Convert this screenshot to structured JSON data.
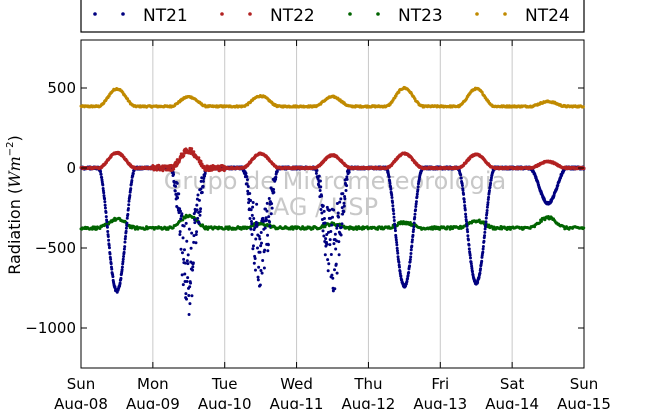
{
  "chart_data": {
    "type": "scatter",
    "ylabel_main": "Radiation (",
    "ylabel_unit": "Wm",
    "ylabel_exp": "−2",
    "ylabel_close": ")",
    "ylim": [
      -1250,
      800
    ],
    "yticks": [
      500,
      0,
      -500,
      -1000
    ],
    "ytick_labels": [
      "500",
      "0",
      "−500",
      "−1000"
    ],
    "xlim": [
      "2010-08-08",
      "2010-08-15"
    ],
    "xticks": [
      {
        "day": "Sun",
        "date": "Aug-08"
      },
      {
        "day": "Mon",
        "date": "Aug-09"
      },
      {
        "day": "Tue",
        "date": "Aug-10"
      },
      {
        "day": "Wed",
        "date": "Aug-11"
      },
      {
        "day": "Thu",
        "date": "Aug-12"
      },
      {
        "day": "Fri",
        "date": "Aug-13"
      },
      {
        "day": "Sat",
        "date": "Aug-14"
      },
      {
        "day": "Sun",
        "date": "Aug-15"
      }
    ],
    "grid": "vertical",
    "legend_position": "top",
    "watermark": [
      "Grupo de Micrometeorologia",
      "IAG / USP"
    ],
    "series": [
      {
        "name": "NT21",
        "color": "#000080",
        "baseline": 0,
        "daily_minimum": [
          -770,
          -850,
          -740,
          -730,
          -740,
          -720,
          -220
        ]
      },
      {
        "name": "NT22",
        "color": "#b22222",
        "baseline": 0,
        "daily_maximum": [
          95,
          110,
          90,
          80,
          90,
          85,
          40
        ]
      },
      {
        "name": "NT23",
        "color": "#006400",
        "baseline": -375,
        "daily_maximum": [
          -320,
          -300,
          -350,
          -350,
          -340,
          -330,
          -310
        ]
      },
      {
        "name": "NT24",
        "color": "#c08a00",
        "baseline": 385,
        "daily_maximum": [
          495,
          445,
          450,
          445,
          500,
          495,
          415
        ]
      }
    ]
  }
}
